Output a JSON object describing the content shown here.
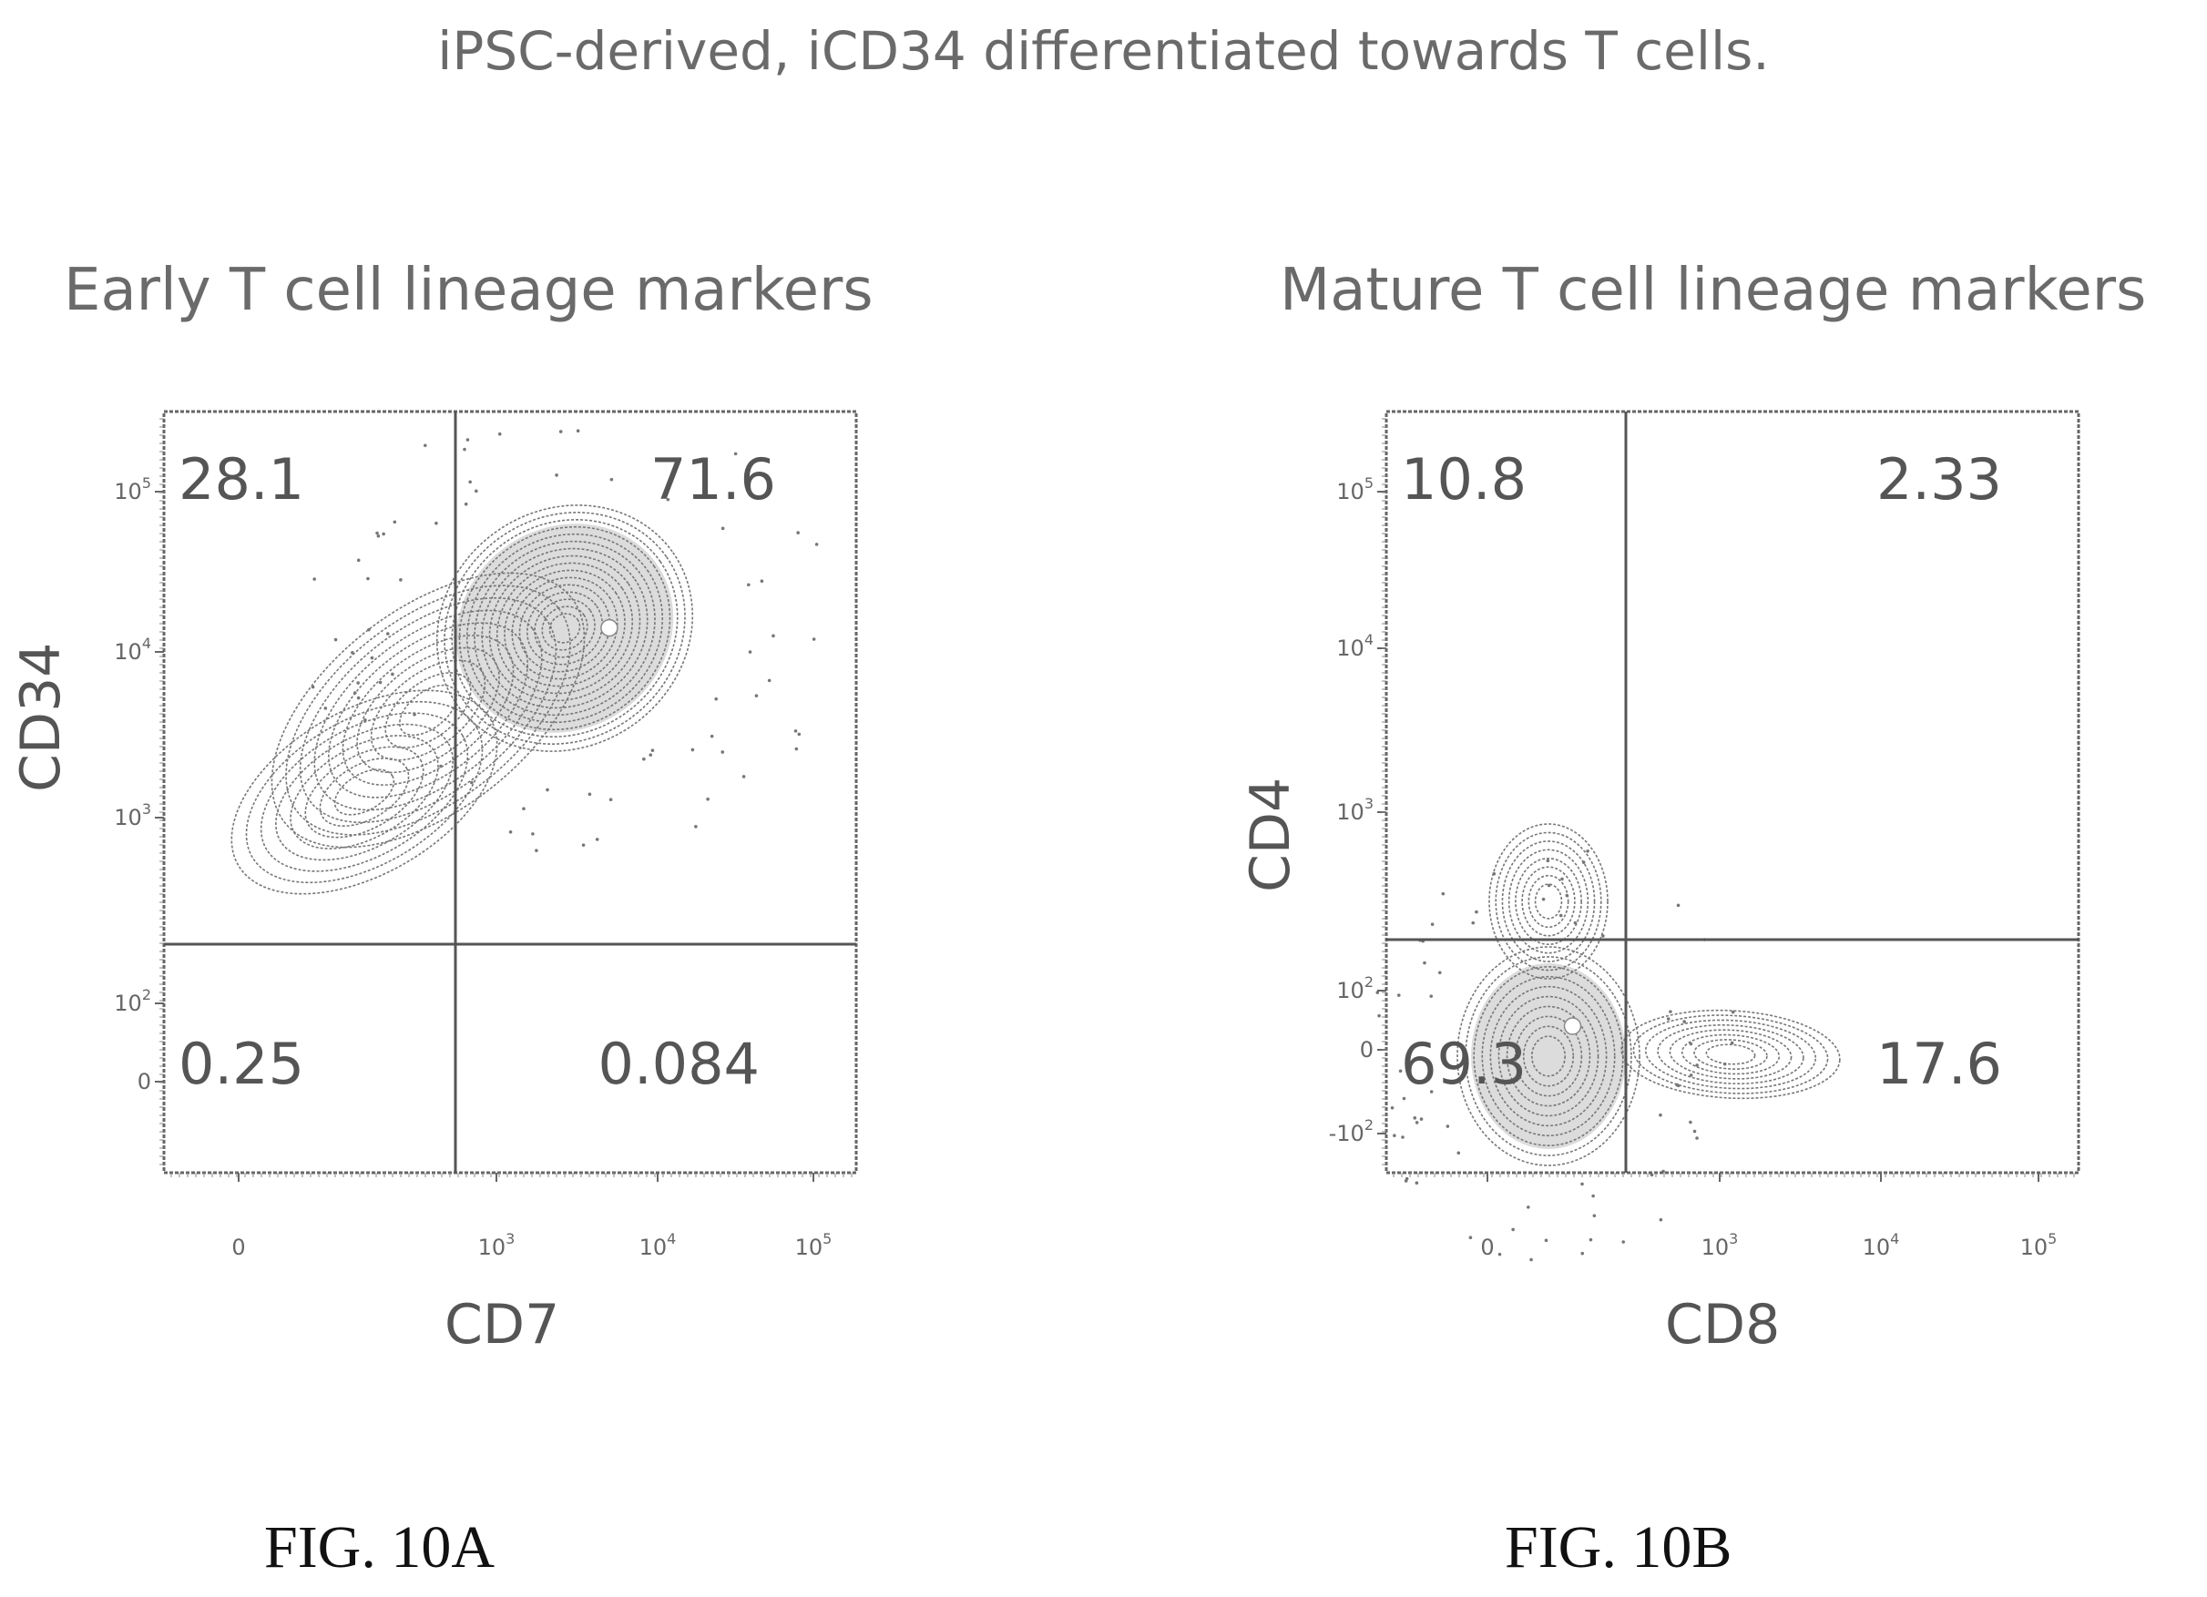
{
  "page_title": "iPSC-derived, iCD34 differentiated towards T cells.",
  "chart_data": [
    {
      "type": "scatter",
      "subtype": "flow-cytometry-contour-quadrant",
      "title": "Early T cell lineage markers",
      "xlabel": "CD7",
      "ylabel": "CD34",
      "figure_label": "FIG. 10A",
      "x_scale": "biexponential",
      "y_scale": "biexponential",
      "x_ticks": [
        {
          "value": 0,
          "label": "0"
        },
        {
          "value": 1000,
          "label": "10^3"
        },
        {
          "value": 10000,
          "label": "10^4"
        },
        {
          "value": 100000,
          "label": "10^5"
        }
      ],
      "y_ticks": [
        {
          "value": 0,
          "label": "0"
        },
        {
          "value": 100,
          "label": "10^2"
        },
        {
          "value": 1000,
          "label": "10^3"
        },
        {
          "value": 10000,
          "label": "10^4"
        },
        {
          "value": 100000,
          "label": "10^5"
        }
      ],
      "quadrants": [
        {
          "position": "top-left",
          "value": 28.1,
          "label": "28.1"
        },
        {
          "position": "top-right",
          "value": 71.6,
          "label": "71.6"
        },
        {
          "position": "bottom-left",
          "value": 0.25,
          "label": "0.25"
        },
        {
          "position": "bottom-right",
          "value": 0.084,
          "label": "0.084"
        }
      ],
      "population_peak": {
        "x_log10": 3.7,
        "y_log10": 4.15
      },
      "grid": false,
      "legend": "none"
    },
    {
      "type": "scatter",
      "subtype": "flow-cytometry-contour-quadrant",
      "title": "Mature T cell lineage markers",
      "xlabel": "CD8",
      "ylabel": "CD4",
      "figure_label": "FIG. 10B",
      "x_scale": "biexponential",
      "y_scale": "biexponential",
      "x_ticks": [
        {
          "value": 0,
          "label": "0"
        },
        {
          "value": 1000,
          "label": "10^3"
        },
        {
          "value": 10000,
          "label": "10^4"
        },
        {
          "value": 100000,
          "label": "10^5"
        }
      ],
      "y_ticks": [
        {
          "value": -100,
          "label": "-10^2"
        },
        {
          "value": 0,
          "label": "0"
        },
        {
          "value": 100,
          "label": "10^2"
        },
        {
          "value": 1000,
          "label": "10^3"
        },
        {
          "value": 10000,
          "label": "10^4"
        },
        {
          "value": 100000,
          "label": "10^5"
        }
      ],
      "quadrants": [
        {
          "position": "top-left",
          "value": 10.8,
          "label": "10.8"
        },
        {
          "position": "top-right",
          "value": 2.33,
          "label": "2.33"
        },
        {
          "position": "bottom-left",
          "value": 69.3,
          "label": "69.3"
        },
        {
          "position": "bottom-right",
          "value": 17.6,
          "label": "17.6"
        }
      ],
      "population_peak": {
        "x_log10": 1.1,
        "y_log10": 0.8
      },
      "grid": false,
      "legend": "none"
    }
  ]
}
